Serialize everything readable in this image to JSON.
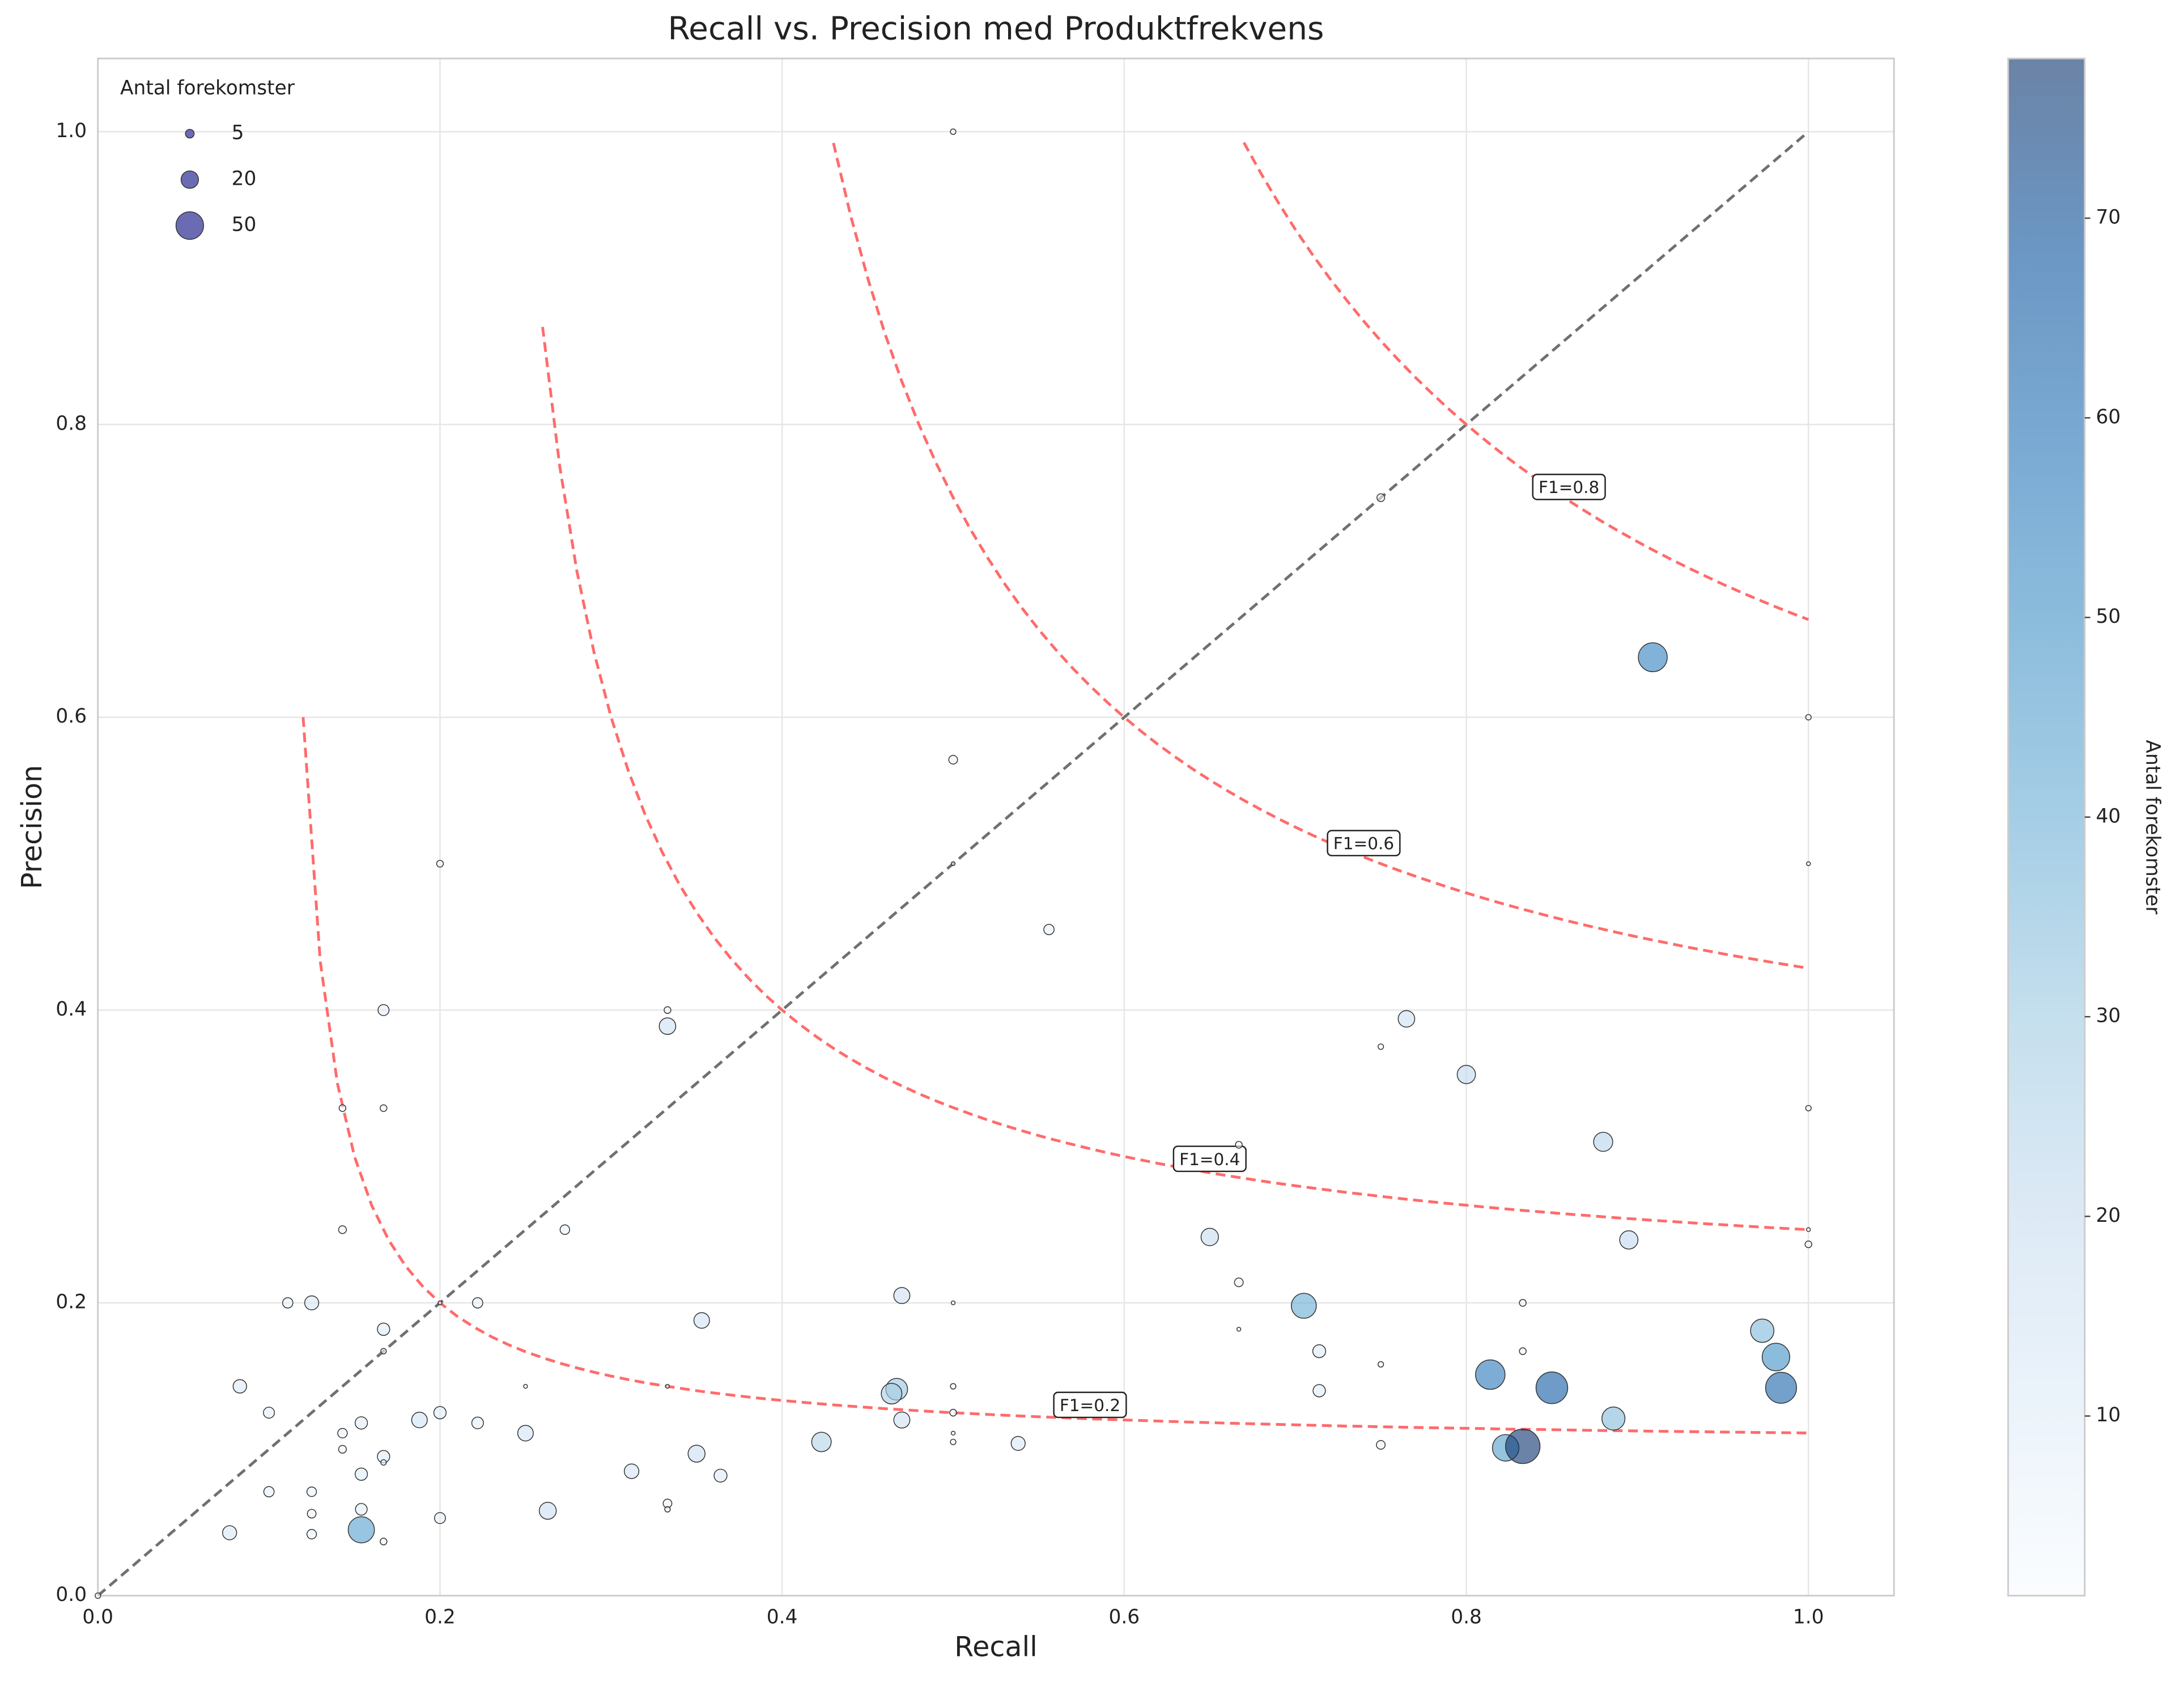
{
  "chart_data": {
    "type": "scatter",
    "title": "Recall vs. Precision med Produktfrekvens",
    "x_label": "Recall",
    "y_label": "Precision",
    "x": [
      0.5,
      0.75,
      0.909,
      1.0,
      0.5,
      0.2,
      0.5,
      1.0,
      0.556,
      0.167,
      0.333,
      0.333,
      0.765,
      0.75,
      0.8,
      0.143,
      0.167,
      1.0,
      0.667,
      0.88,
      0.143,
      0.273,
      0.65,
      0.895,
      1.0,
      1.0,
      0.667,
      0.47,
      0.111,
      0.125,
      0.2,
      0.222,
      0.5,
      0.833,
      0.705,
      0.353,
      0.167,
      0.667,
      0.973,
      0.167,
      0.714,
      0.833,
      0.981,
      0.75,
      0.814,
      0.083,
      0.25,
      0.333,
      0.5,
      0.467,
      0.464,
      0.85,
      0.714,
      0.984,
      0.1,
      0.2,
      0.5,
      0.188,
      0.47,
      0.886,
      0.154,
      0.222,
      0.25,
      0.143,
      0.5,
      0.423,
      0.538,
      0.5,
      0.75,
      0.823,
      0.833,
      0.143,
      0.167,
      0.35,
      0.167,
      0.312,
      0.154,
      0.364,
      0.1,
      0.125,
      0.333,
      0.333,
      0.154,
      0.263,
      0.125,
      0.2,
      0.154,
      0.077,
      0.125,
      0.167,
      0.0
    ],
    "values": [
      1.0,
      0.75,
      0.641,
      0.6,
      0.571,
      0.5,
      0.5,
      0.5,
      0.455,
      0.4,
      0.4,
      0.389,
      0.394,
      0.375,
      0.356,
      0.333,
      0.333,
      0.333,
      0.308,
      0.31,
      0.25,
      0.25,
      0.245,
      0.243,
      0.25,
      0.24,
      0.214,
      0.205,
      0.2,
      0.2,
      0.2,
      0.2,
      0.2,
      0.2,
      0.198,
      0.188,
      0.182,
      0.182,
      0.181,
      0.167,
      0.167,
      0.167,
      0.163,
      0.158,
      0.151,
      0.143,
      0.143,
      0.143,
      0.143,
      0.141,
      0.138,
      0.142,
      0.14,
      0.142,
      0.125,
      0.125,
      0.125,
      0.12,
      0.12,
      0.121,
      0.118,
      0.118,
      0.111,
      0.111,
      0.111,
      0.105,
      0.104,
      0.105,
      0.103,
      0.101,
      0.102,
      0.1,
      0.095,
      0.097,
      0.091,
      0.085,
      0.083,
      0.082,
      0.071,
      0.071,
      0.063,
      0.059,
      0.059,
      0.058,
      0.056,
      0.053,
      0.045,
      0.043,
      0.042,
      0.037,
      0.0
    ],
    "sizes": [
      2,
      4,
      55,
      2,
      5,
      3,
      1,
      1,
      7,
      8,
      3,
      18,
      18,
      2,
      22,
      3,
      3,
      2,
      3,
      24,
      4,
      6,
      20,
      22,
      1,
      3,
      5,
      17,
      7,
      13,
      1,
      7,
      1,
      3,
      41,
      16,
      10,
      1,
      36,
      2,
      11,
      3,
      50,
      2,
      57,
      12,
      1,
      1,
      2,
      31,
      28,
      66,
      10,
      63,
      8,
      10,
      3,
      16,
      17,
      35,
      10,
      9,
      16,
      6,
      1,
      25,
      13,
      2,
      5,
      46,
      78,
      4,
      10,
      19,
      2,
      14,
      10,
      11,
      7,
      6,
      5,
      2,
      9,
      19,
      5,
      8,
      45,
      13,
      6,
      3,
      2
    ],
    "xlim": [
      0,
      1.05
    ],
    "ylim": [
      0,
      1.05
    ],
    "xticks": [
      {
        "value": 0,
        "label": "0.0"
      },
      0.2,
      0.4,
      0.6,
      0.8,
      {
        "value": 1,
        "label": "1.0"
      }
    ],
    "yticks": [
      {
        "value": 0,
        "label": "0.0"
      },
      0.2,
      0.4,
      0.6,
      0.8,
      {
        "value": 1,
        "label": "1.0"
      }
    ],
    "grid": true,
    "f1_curves": [
      {
        "value": 0.2,
        "label": "F1=0.2"
      },
      {
        "value": 0.4,
        "label": "F1=0.4"
      },
      {
        "value": 0.6,
        "label": "F1=0.6"
      },
      {
        "value": 0.8,
        "label": "F1=0.8"
      }
    ],
    "curve_color": "#ff6b6b",
    "diagonal_color": "#707070",
    "size_legend": {
      "title": "Antal forekomster",
      "sizes": [
        5,
        20,
        50
      ],
      "color": "#5b5bab",
      "corner": "upper left"
    },
    "colorbar": {
      "label": "Antal forekomster",
      "clim": [
        1,
        78
      ],
      "ticks": [
        10,
        20,
        30,
        40,
        50,
        60,
        70
      ],
      "colormap": [
        "#f7fbff",
        "#deebf7",
        "#c6dbef",
        "#9ecae1",
        "#6baed6",
        "#4292c6",
        "#2171b5",
        "#08519c",
        "#08306b"
      ]
    }
  }
}
